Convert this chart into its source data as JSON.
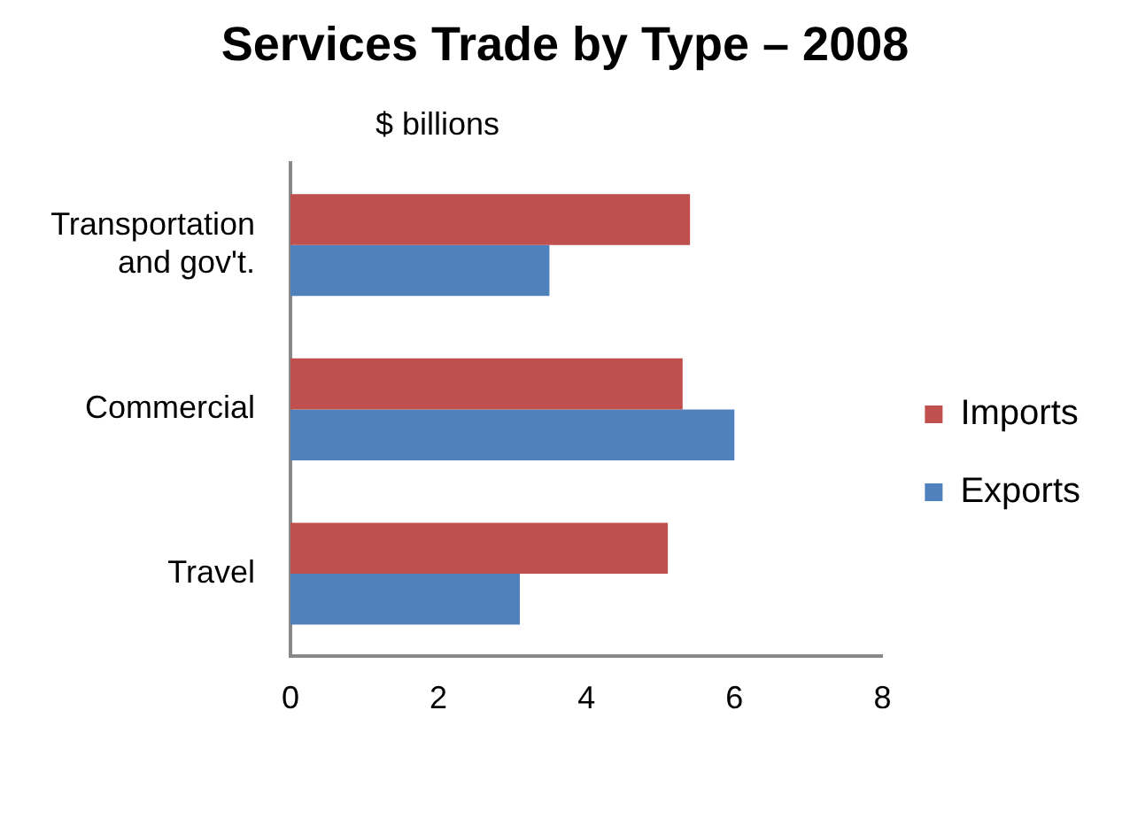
{
  "chart_data": {
    "type": "bar",
    "orientation": "horizontal",
    "title": "Services Trade by Type – 2008",
    "xlabel": "$ billions",
    "categories": [
      "Transportation and gov't.",
      "Commercial",
      "Travel"
    ],
    "series": [
      {
        "name": "Imports",
        "color": "#c0504d",
        "values": [
          5.4,
          5.3,
          5.1
        ]
      },
      {
        "name": "Exports",
        "color": "#4f81bd",
        "values": [
          3.5,
          6.0,
          3.1
        ]
      }
    ],
    "xlim": [
      0,
      8
    ],
    "xticks": [
      0,
      2,
      4,
      6,
      8
    ],
    "grid": false,
    "legend": "right"
  }
}
